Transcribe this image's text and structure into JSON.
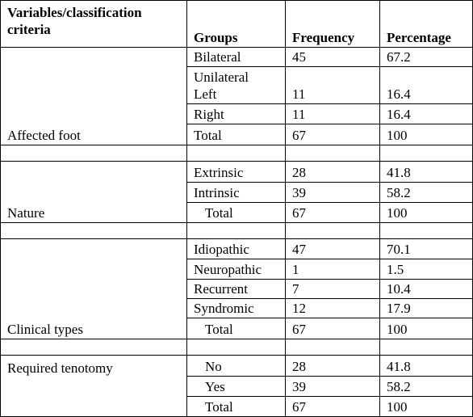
{
  "header": [
    "Variables/classification criteria",
    "Groups",
    "Frequency",
    "Percentage"
  ],
  "sections": [
    {
      "label": "Affected foot",
      "rows": [
        [
          "Bilateral",
          45,
          67.2
        ],
        [
          "Unilateral\nLeft",
          11,
          16.4
        ],
        [
          "Right",
          11,
          16.4
        ],
        [
          "Total",
          67,
          100
        ]
      ]
    },
    {
      "label": "Nature",
      "rows": [
        [
          "Extrinsic",
          28,
          41.8
        ],
        [
          "Intrinsic",
          39,
          58.2
        ],
        [
          "Total",
          67,
          100
        ]
      ]
    },
    {
      "label": "Clinical types",
      "rows": [
        [
          "Idiopathic",
          47,
          70.1
        ],
        [
          "Neuropathic",
          1,
          1.5
        ],
        [
          "Recurrent",
          7,
          10.4
        ],
        [
          "Syndromic",
          12,
          17.9
        ],
        [
          "Total",
          67,
          100
        ]
      ]
    },
    {
      "label": "Required tenotomy",
      "rows": [
        [
          "No",
          28,
          41.8
        ],
        [
          "Yes",
          39,
          58.2
        ],
        [
          "Total",
          67,
          100
        ]
      ]
    }
  ]
}
